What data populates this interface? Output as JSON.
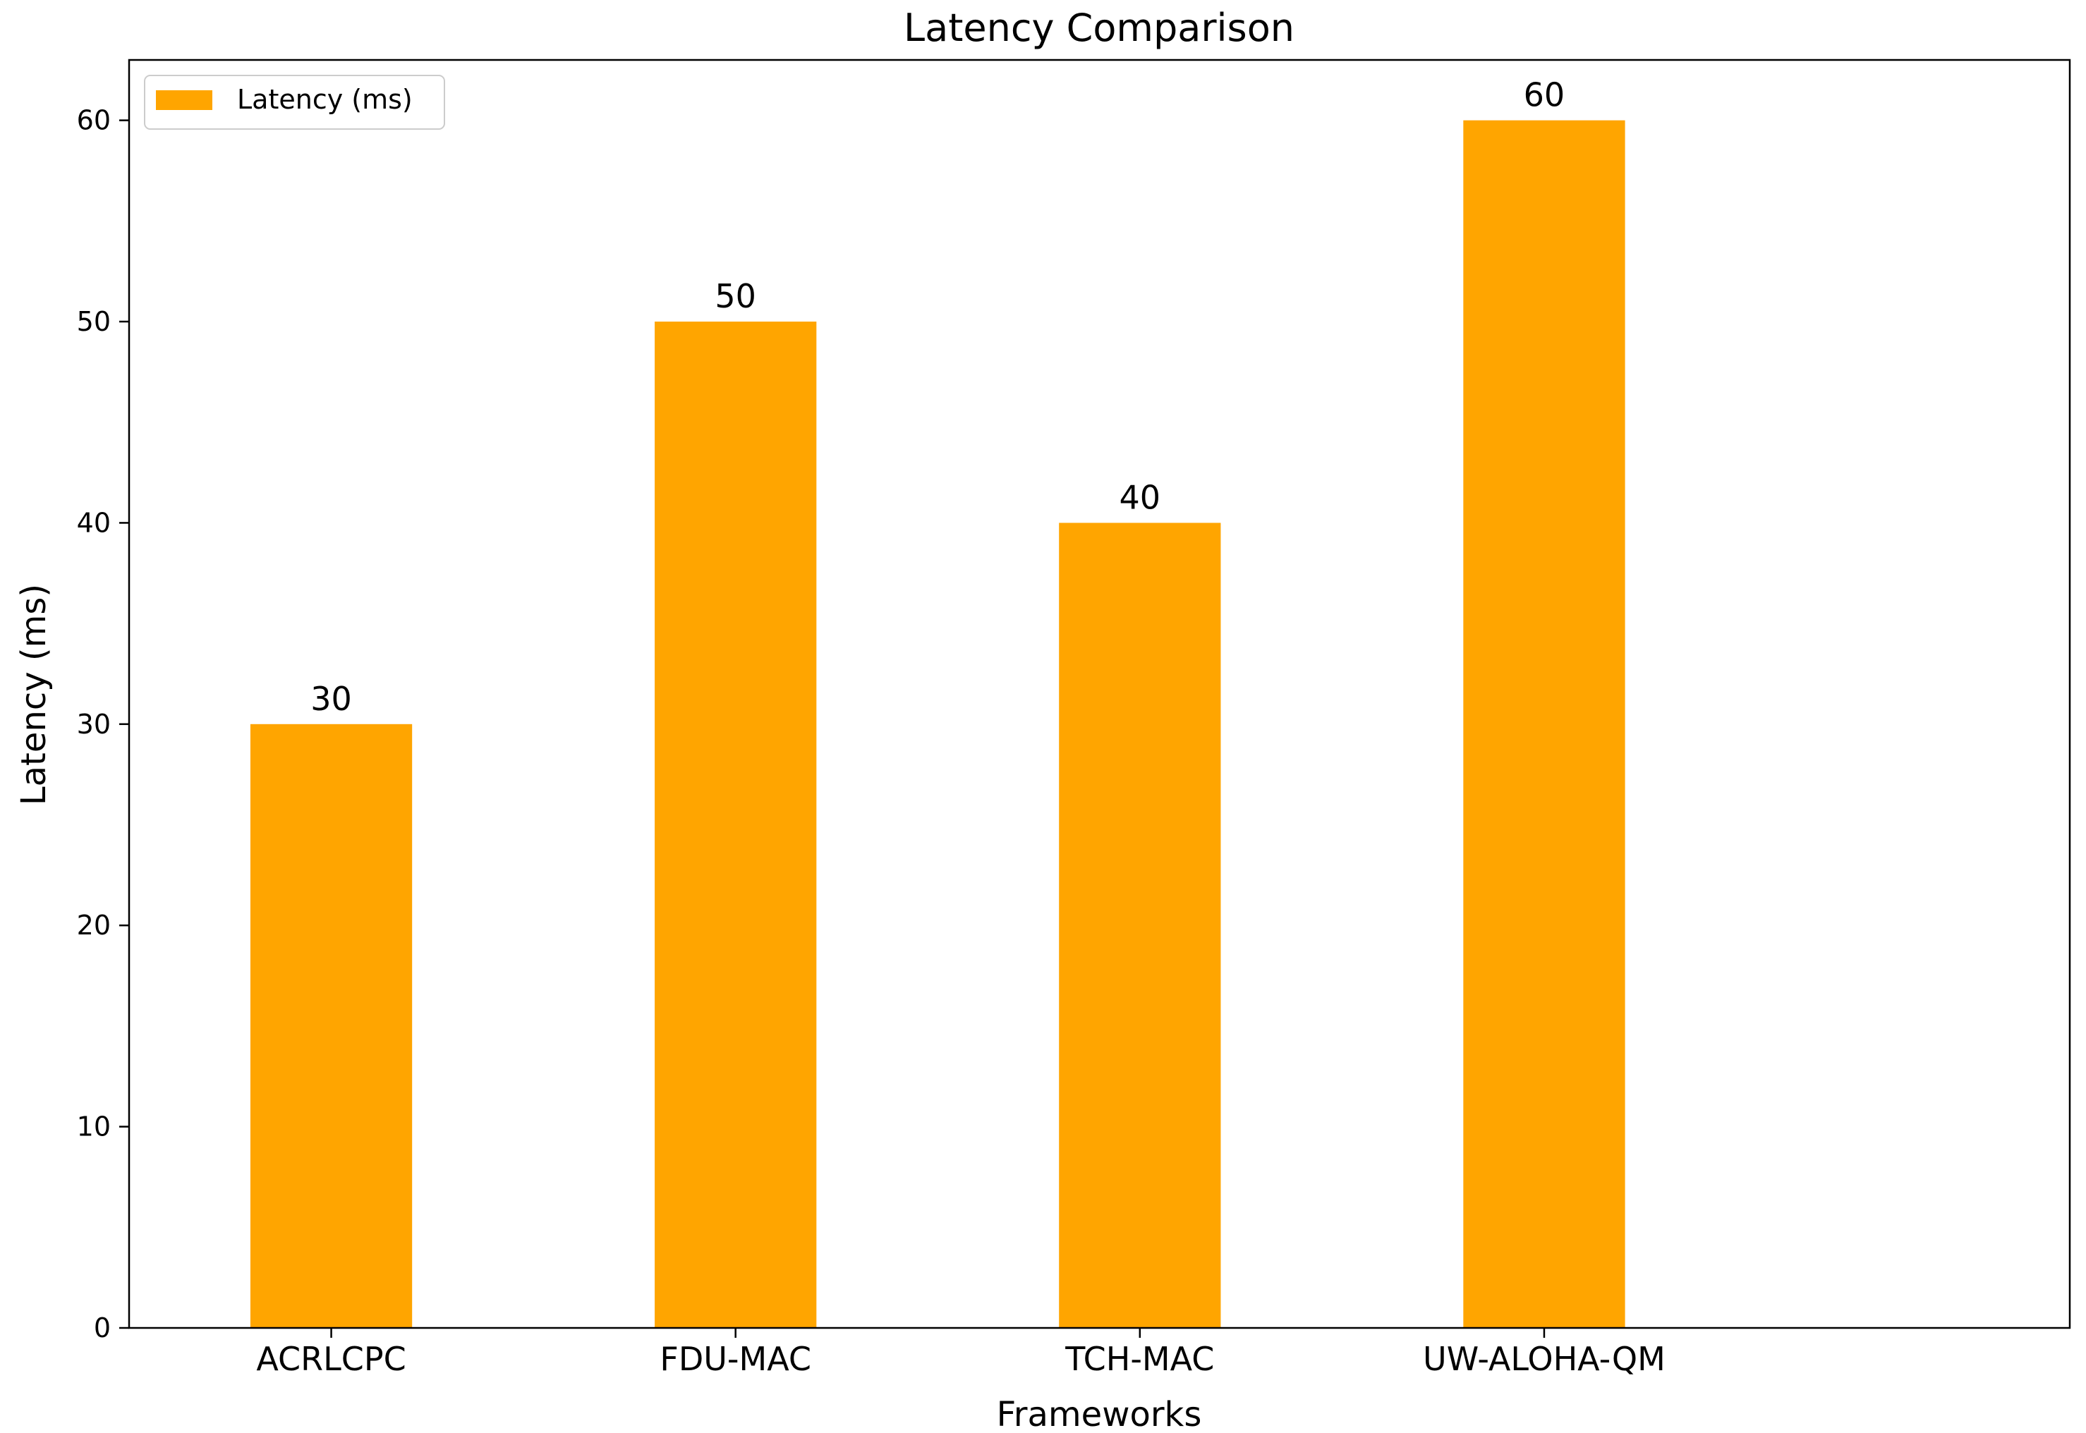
{
  "chart_data": {
    "type": "bar",
    "title": "Latency Comparison",
    "xlabel": "Frameworks",
    "ylabel": "Latency (ms)",
    "categories": [
      "ACRLCPC",
      "FDU-MAC",
      "TCH-MAC",
      "UW-ALOHA-QM"
    ],
    "series": [
      {
        "name": "Latency (ms)",
        "values": [
          30,
          50,
          40,
          60
        ],
        "color": "#FFA500"
      }
    ],
    "data_labels": [
      "30",
      "50",
      "40",
      "60"
    ],
    "yticks": [
      0,
      10,
      20,
      30,
      40,
      50,
      60
    ],
    "ytick_labels": [
      "0",
      "10",
      "20",
      "30",
      "40",
      "50",
      "60"
    ],
    "ylim": [
      0,
      63
    ],
    "grid": false,
    "legend": {
      "position": "top-left",
      "entries": [
        "Latency (ms)"
      ]
    }
  }
}
